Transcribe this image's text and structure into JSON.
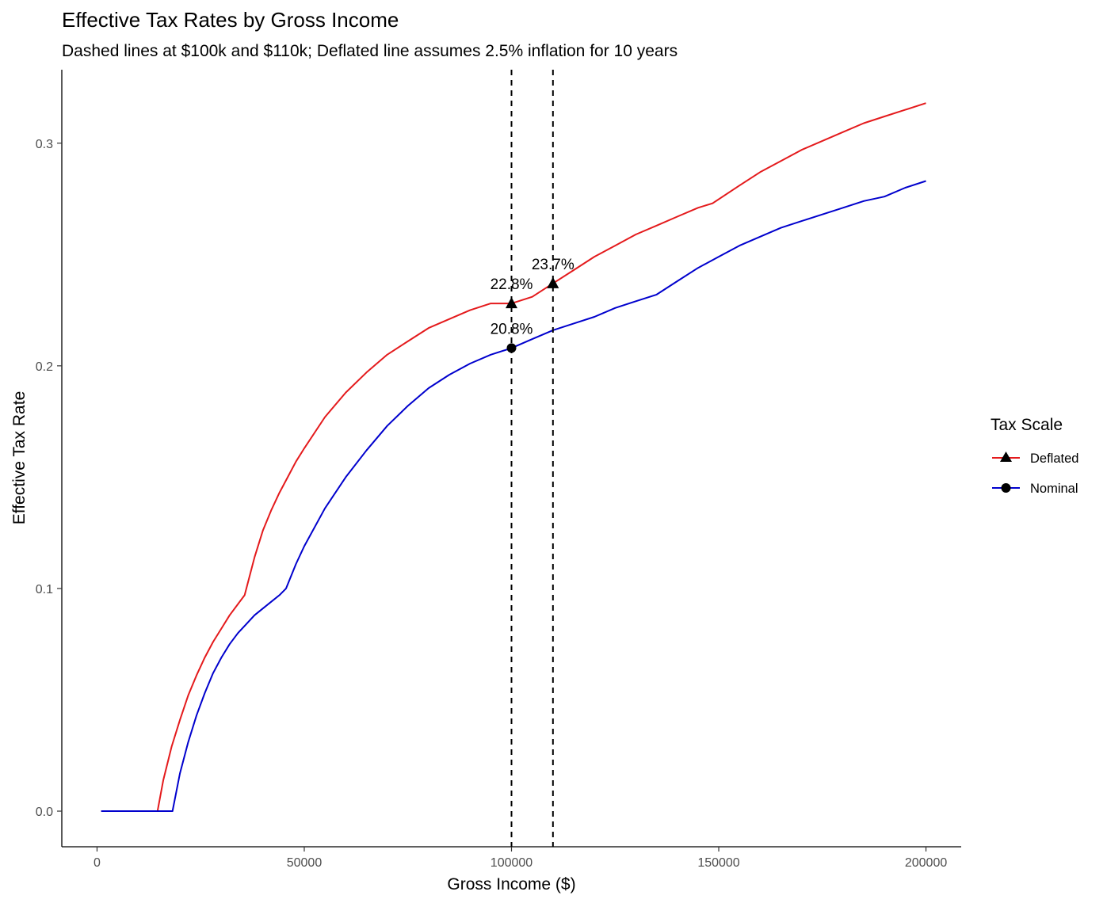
{
  "chart_data": {
    "type": "line",
    "title": "Effective Tax Rates by Gross Income",
    "subtitle": "Dashed lines at $100k and $110k; Deflated line assumes 2.5% inflation for 10 years",
    "xlabel": "Gross Income ($)",
    "ylabel": "Effective Tax Rate",
    "xlim": [
      -8500,
      208500
    ],
    "ylim": [
      -0.016,
      0.333
    ],
    "x_ticks": [
      0,
      50000,
      100000,
      150000,
      200000
    ],
    "x_tick_labels": [
      "0",
      "50000",
      "100000",
      "150000",
      "200000"
    ],
    "y_ticks": [
      0.0,
      0.1,
      0.2,
      0.3
    ],
    "y_tick_labels": [
      "0.0",
      "0.1",
      "0.2",
      "0.3"
    ],
    "grid": false,
    "legend": {
      "title": "Tax Scale",
      "position": "right",
      "entries": [
        {
          "label": "Deflated",
          "color": "#e41a1c",
          "marker": "triangle"
        },
        {
          "label": "Nominal",
          "color": "#0000cd",
          "marker": "circle"
        }
      ]
    },
    "vlines": [
      {
        "x": 100000,
        "style": "dashed",
        "color": "#000000"
      },
      {
        "x": 110000,
        "style": "dashed",
        "color": "#000000"
      }
    ],
    "series": [
      {
        "name": "Deflated",
        "color": "#e41a1c",
        "x": [
          1000,
          14600,
          16000,
          18000,
          20000,
          22000,
          24000,
          26000,
          28000,
          30000,
          32000,
          34000,
          35600,
          38000,
          40000,
          42000,
          44000,
          46000,
          48000,
          50000,
          55000,
          60000,
          65000,
          70000,
          75000,
          80000,
          85000,
          90000,
          95000,
          100000,
          105000,
          110000,
          115000,
          120000,
          125000,
          130000,
          135000,
          140000,
          145000,
          148500,
          155000,
          160000,
          165000,
          170000,
          175000,
          180000,
          185000,
          190000,
          195000,
          200000
        ],
        "y": [
          0.0,
          0.0,
          0.014,
          0.029,
          0.041,
          0.052,
          0.061,
          0.069,
          0.076,
          0.082,
          0.088,
          0.093,
          0.097,
          0.114,
          0.126,
          0.135,
          0.143,
          0.15,
          0.157,
          0.163,
          0.177,
          0.188,
          0.197,
          0.205,
          0.211,
          0.217,
          0.221,
          0.225,
          0.228,
          0.228,
          0.231,
          0.237,
          0.243,
          0.249,
          0.254,
          0.259,
          0.263,
          0.267,
          0.271,
          0.273,
          0.281,
          0.287,
          0.292,
          0.297,
          0.301,
          0.305,
          0.309,
          0.312,
          0.315,
          0.318
        ]
      },
      {
        "name": "Nominal",
        "color": "#0000cd",
        "x": [
          1000,
          18200,
          20000,
          22000,
          24000,
          26000,
          28000,
          30000,
          32000,
          34000,
          36000,
          38000,
          40000,
          42000,
          44000,
          45600,
          48000,
          50000,
          55000,
          60000,
          65000,
          70000,
          75000,
          80000,
          85000,
          90000,
          95000,
          100000,
          105000,
          110000,
          115000,
          120000,
          125000,
          130000,
          135000,
          140000,
          145000,
          150000,
          155000,
          160000,
          165000,
          170000,
          175000,
          180000,
          185000,
          190000,
          195000,
          200000
        ],
        "y": [
          0.0,
          0.0,
          0.017,
          0.031,
          0.043,
          0.053,
          0.062,
          0.069,
          0.075,
          0.08,
          0.084,
          0.088,
          0.091,
          0.094,
          0.097,
          0.1,
          0.111,
          0.119,
          0.136,
          0.15,
          0.162,
          0.173,
          0.182,
          0.19,
          0.196,
          0.201,
          0.205,
          0.208,
          0.212,
          0.216,
          0.219,
          0.222,
          0.226,
          0.229,
          0.232,
          0.238,
          0.244,
          0.249,
          0.254,
          0.258,
          0.262,
          0.265,
          0.268,
          0.271,
          0.274,
          0.276,
          0.28,
          0.283
        ]
      }
    ],
    "points": [
      {
        "series": "Deflated",
        "x": 100000,
        "y": 0.228,
        "marker": "triangle",
        "label": "22.8%"
      },
      {
        "series": "Deflated",
        "x": 110000,
        "y": 0.237,
        "marker": "triangle",
        "label": "23.7%"
      },
      {
        "series": "Nominal",
        "x": 100000,
        "y": 0.208,
        "marker": "circle",
        "label": "20.8%"
      }
    ]
  }
}
